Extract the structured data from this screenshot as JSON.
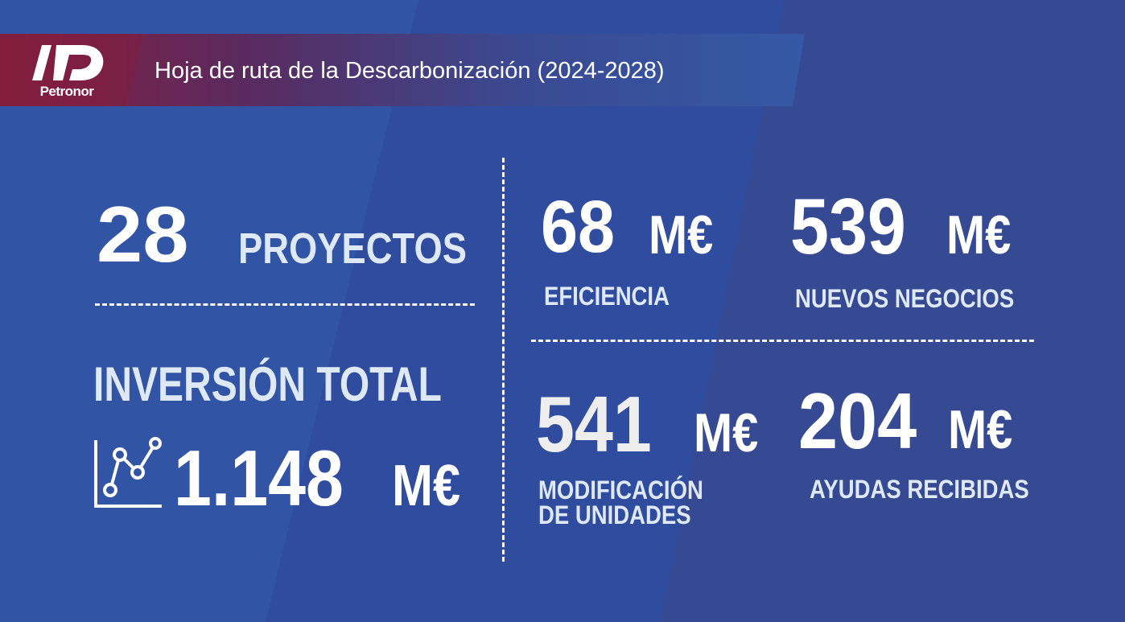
{
  "header": {
    "logo_text": "Petronor",
    "title": "Hoja de ruta de la Descarbonización (2024-2028)"
  },
  "projects": {
    "value": "28",
    "label": "PROYECTOS"
  },
  "investment": {
    "label": "INVERSIÓN TOTAL",
    "value": "1.148",
    "unit": "M€",
    "icon": "line-chart-icon"
  },
  "efficiency": {
    "value": "68",
    "unit": "M€",
    "label": "EFICIENCIA"
  },
  "new_business": {
    "value": "539",
    "unit": "M€",
    "label": "NUEVOS NEGOCIOS"
  },
  "unit_modification": {
    "value": "541",
    "unit": "M€",
    "label_line1": "MODIFICACIÓN",
    "label_line2": "DE UNIDADES"
  },
  "grants": {
    "value": "204",
    "unit": "M€",
    "label": "AYUDAS RECIBIDAS"
  },
  "colors": {
    "background": "#334a97",
    "header_accent": "#8a1f3f",
    "stripe": "#3558a8"
  }
}
